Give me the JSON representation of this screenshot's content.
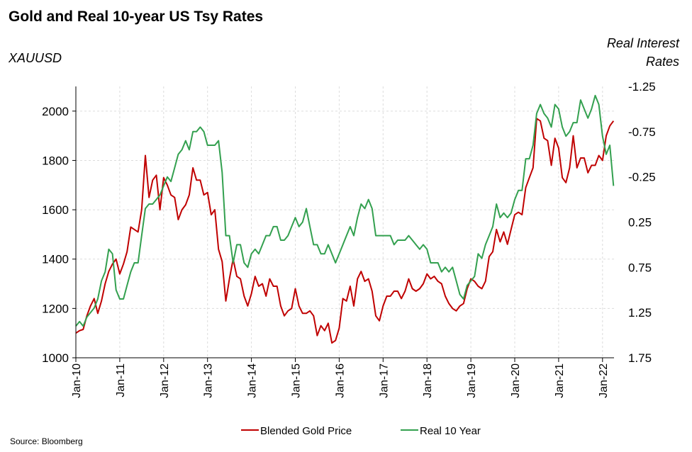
{
  "chart_data": {
    "type": "line",
    "title": "Gold and Real 10-year US Tsy Rates",
    "ylabel_left": "XAUUSD",
    "ylabel_right": [
      "Real Interest",
      "Rates"
    ],
    "source": "Source:  Bloomberg",
    "x_start": "Jan-2010",
    "x_frequency": "monthly",
    "x_ticks": [
      "Jan-10",
      "Jan-11",
      "Jan-12",
      "Jan-13",
      "Jan-14",
      "Jan-15",
      "Jan-16",
      "Jan-17",
      "Jan-18",
      "Jan-19",
      "Jan-20",
      "Jan-21",
      "Jan-22"
    ],
    "ylim_left": [
      1000,
      2100
    ],
    "yticks_left": [
      "1000",
      "1200",
      "1400",
      "1600",
      "1800",
      "2000"
    ],
    "ylim_right": [
      -1.25,
      1.75
    ],
    "right_axis_inverted": true,
    "yticks_right": [
      "-1.25",
      "-0.75",
      "-0.25",
      "0.25",
      "0.75",
      "1.25",
      "1.75"
    ],
    "grid": true,
    "legend_position": "bottom",
    "series": [
      {
        "name": "Blended Gold Price",
        "axis": "left",
        "color": "#c00000",
        "values": [
          1100,
          1110,
          1115,
          1170,
          1210,
          1240,
          1180,
          1230,
          1300,
          1350,
          1380,
          1400,
          1340,
          1380,
          1430,
          1530,
          1520,
          1510,
          1600,
          1820,
          1650,
          1720,
          1740,
          1600,
          1730,
          1700,
          1660,
          1650,
          1560,
          1600,
          1620,
          1660,
          1770,
          1720,
          1720,
          1660,
          1670,
          1580,
          1600,
          1440,
          1390,
          1230,
          1320,
          1400,
          1330,
          1320,
          1250,
          1210,
          1260,
          1330,
          1290,
          1300,
          1250,
          1320,
          1290,
          1290,
          1210,
          1170,
          1190,
          1200,
          1280,
          1210,
          1180,
          1180,
          1190,
          1170,
          1090,
          1130,
          1110,
          1140,
          1060,
          1070,
          1120,
          1240,
          1230,
          1290,
          1210,
          1320,
          1350,
          1310,
          1320,
          1270,
          1170,
          1150,
          1210,
          1250,
          1250,
          1270,
          1270,
          1240,
          1270,
          1320,
          1280,
          1270,
          1280,
          1300,
          1340,
          1320,
          1330,
          1310,
          1300,
          1250,
          1220,
          1200,
          1190,
          1210,
          1220,
          1280,
          1320,
          1310,
          1290,
          1280,
          1310,
          1410,
          1430,
          1520,
          1470,
          1510,
          1460,
          1520,
          1580,
          1590,
          1580,
          1690,
          1730,
          1770,
          1970,
          1960,
          1890,
          1880,
          1780,
          1890,
          1850,
          1730,
          1710,
          1770,
          1900,
          1770,
          1810,
          1810,
          1750,
          1780,
          1780,
          1820,
          1800,
          1900,
          1940,
          1960
        ]
      },
      {
        "name": "Real 10 Year",
        "axis": "right",
        "color": "#33a04f",
        "values": [
          1.4,
          1.35,
          1.4,
          1.3,
          1.25,
          1.2,
          1.1,
          0.9,
          0.8,
          0.55,
          0.6,
          1.0,
          1.1,
          1.1,
          0.95,
          0.8,
          0.7,
          0.7,
          0.4,
          0.1,
          0.05,
          0.05,
          0.0,
          -0.05,
          -0.15,
          -0.25,
          -0.2,
          -0.35,
          -0.5,
          -0.55,
          -0.65,
          -0.55,
          -0.75,
          -0.75,
          -0.8,
          -0.75,
          -0.6,
          -0.6,
          -0.6,
          -0.65,
          -0.3,
          0.4,
          0.4,
          0.7,
          0.5,
          0.5,
          0.7,
          0.75,
          0.6,
          0.55,
          0.6,
          0.5,
          0.4,
          0.4,
          0.3,
          0.3,
          0.45,
          0.45,
          0.4,
          0.3,
          0.2,
          0.3,
          0.25,
          0.1,
          0.3,
          0.5,
          0.5,
          0.6,
          0.6,
          0.5,
          0.6,
          0.7,
          0.6,
          0.5,
          0.4,
          0.3,
          0.4,
          0.2,
          0.05,
          0.1,
          0.0,
          0.1,
          0.4,
          0.4,
          0.4,
          0.4,
          0.4,
          0.5,
          0.45,
          0.45,
          0.45,
          0.4,
          0.45,
          0.5,
          0.55,
          0.5,
          0.55,
          0.7,
          0.7,
          0.7,
          0.8,
          0.75,
          0.8,
          0.75,
          0.9,
          1.05,
          1.1,
          0.95,
          0.9,
          0.85,
          0.6,
          0.65,
          0.5,
          0.4,
          0.3,
          0.05,
          0.2,
          0.15,
          0.2,
          0.15,
          0.0,
          -0.1,
          -0.1,
          -0.45,
          -0.45,
          -0.6,
          -0.95,
          -1.05,
          -0.95,
          -0.9,
          -0.8,
          -1.05,
          -1.0,
          -0.8,
          -0.7,
          -0.75,
          -0.85,
          -0.85,
          -1.1,
          -1.0,
          -0.9,
          -1.0,
          -1.15,
          -1.05,
          -0.7,
          -0.5,
          -0.6,
          -0.15
        ]
      }
    ]
  }
}
